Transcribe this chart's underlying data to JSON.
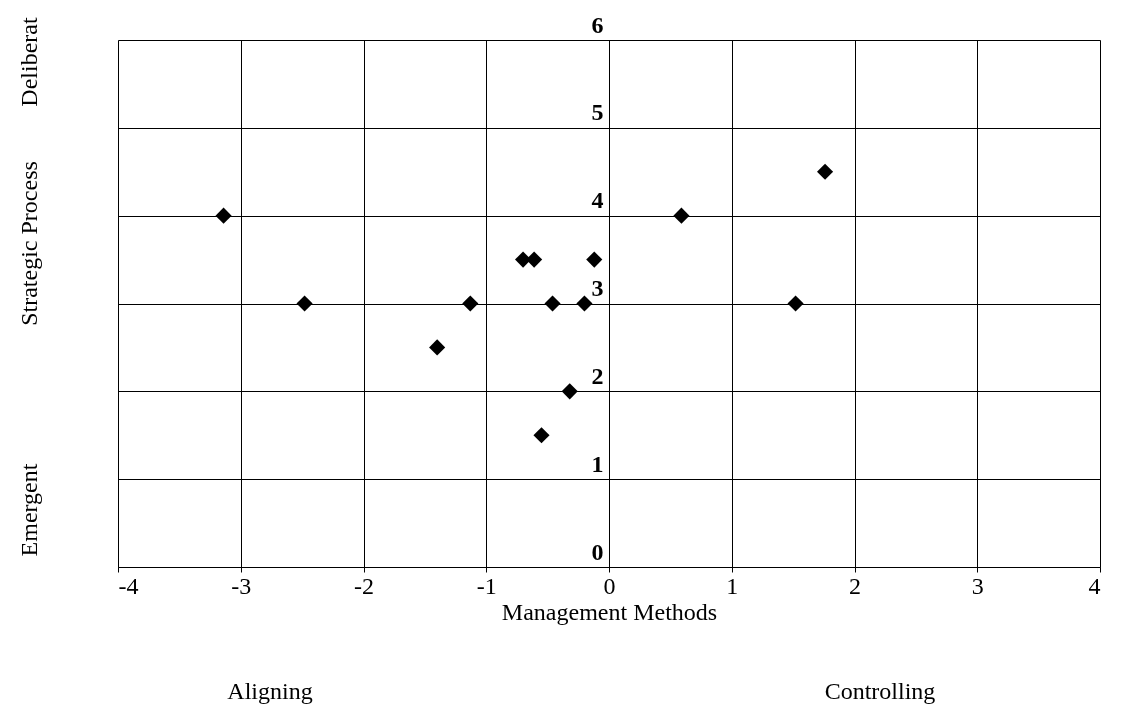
{
  "chart_data": {
    "type": "scatter",
    "xlabel": "Management Methods",
    "ylabel": "Strategic Process",
    "x": [
      -3.14,
      -2.48,
      -1.4,
      -1.13,
      -0.7,
      -0.61,
      -0.12,
      -0.46,
      -0.2,
      -0.32,
      -0.55,
      0.59,
      1.52,
      1.76
    ],
    "values": [
      4,
      3,
      2.5,
      3,
      3.5,
      3.5,
      3.5,
      3,
      3,
      2,
      1.5,
      4,
      3,
      4.5
    ],
    "color": "#000000",
    "marker": "diamond",
    "xlim": [
      -4,
      4
    ],
    "xticks": [
      -4,
      -3,
      -2,
      -1,
      0,
      1,
      2,
      3,
      4
    ],
    "ylim": [
      0,
      6
    ],
    "yticks": [
      0,
      1,
      2,
      3,
      4,
      5,
      6
    ],
    "grid": true,
    "annotations": [
      "Deliberat",
      "Emergent",
      "Aligning",
      "Controlling"
    ]
  }
}
